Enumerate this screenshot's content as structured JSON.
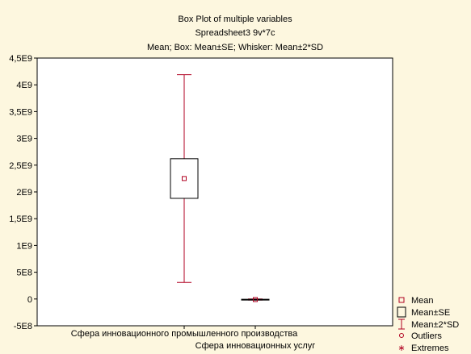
{
  "chart_data": {
    "type": "box",
    "title": [
      "Box Plot of multiple variables",
      "Spreadsheet3 9v*7c",
      "Mean; Box: Mean±SE; Whisker: Mean±2*SD"
    ],
    "xlabel": "",
    "ylabel": "",
    "ylim": [
      -500000000,
      4500000000
    ],
    "yticks": [
      -500000000,
      0,
      500000000,
      1000000000,
      1500000000,
      2000000000,
      2500000000,
      3000000000,
      3500000000,
      4000000000,
      4500000000
    ],
    "ytick_labels": [
      "-5E8",
      "0",
      "5E8",
      "1E9",
      "1,5E9",
      "2E9",
      "2,5E9",
      "3E9",
      "3,5E9",
      "4E9",
      "4,5E9"
    ],
    "categories": [
      "Сфера инновационного промышленного производства",
      "Сфера инновационных услуг"
    ],
    "series": [
      {
        "category": "Сфера инновационного промышленного производства",
        "mean": 2250000000,
        "se_low": 1880000000,
        "se_high": 2620000000,
        "sd2_low": 310000000,
        "sd2_high": 4190000000
      },
      {
        "category": "Сфера инновационных услуг",
        "mean": -10000000,
        "se_low": -15000000,
        "se_high": -5000000,
        "sd2_low": -20000000,
        "sd2_high": 0
      }
    ],
    "legend": [
      "Mean",
      "Mean±SE",
      "Mean±2*SD",
      "Outliers",
      "Extremes"
    ],
    "legend_position": "bottom-right",
    "grid": false,
    "colors": {
      "box": "#000000",
      "whisker": "#b00020",
      "mean": "#b00020",
      "frame": "#000000",
      "plot_bg": "#ffffff",
      "page_bg": "#fdf7df"
    }
  }
}
